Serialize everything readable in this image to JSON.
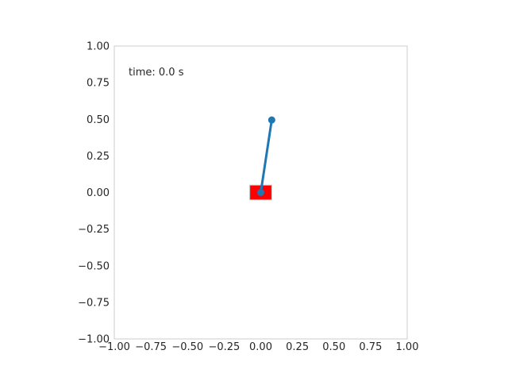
{
  "chart_data": {
    "type": "scatter",
    "title": "",
    "xlabel": "",
    "ylabel": "",
    "xlim": [
      -1.0,
      1.0
    ],
    "ylim": [
      -1.0,
      1.0
    ],
    "grid": false,
    "xticks": [
      -1.0,
      -0.75,
      -0.5,
      -0.25,
      0.0,
      0.25,
      0.5,
      0.75,
      1.0
    ],
    "yticks": [
      -1.0,
      -0.75,
      -0.5,
      -0.25,
      0.0,
      0.25,
      0.5,
      0.75,
      1.0
    ],
    "xtick_labels": [
      "−1.00",
      "−0.75",
      "−0.50",
      "−0.25",
      "0.00",
      "0.25",
      "0.50",
      "0.75",
      "1.00"
    ],
    "ytick_labels": [
      "−1.00",
      "−0.75",
      "−0.50",
      "−0.25",
      "0.00",
      "0.25",
      "0.50",
      "0.75",
      "1.00"
    ],
    "annotation": "time: 0.0 s",
    "cart": {
      "x": 0.0,
      "y": 0.0,
      "width": 0.15,
      "height": 0.1,
      "color": "#ff0000"
    },
    "pendulum": {
      "points": [
        {
          "x": 0.0,
          "y": 0.0
        },
        {
          "x": 0.075,
          "y": 0.495
        }
      ],
      "color": "#1f77b4"
    },
    "colors": {
      "spine": "#cccccc",
      "text": "#262626"
    }
  }
}
